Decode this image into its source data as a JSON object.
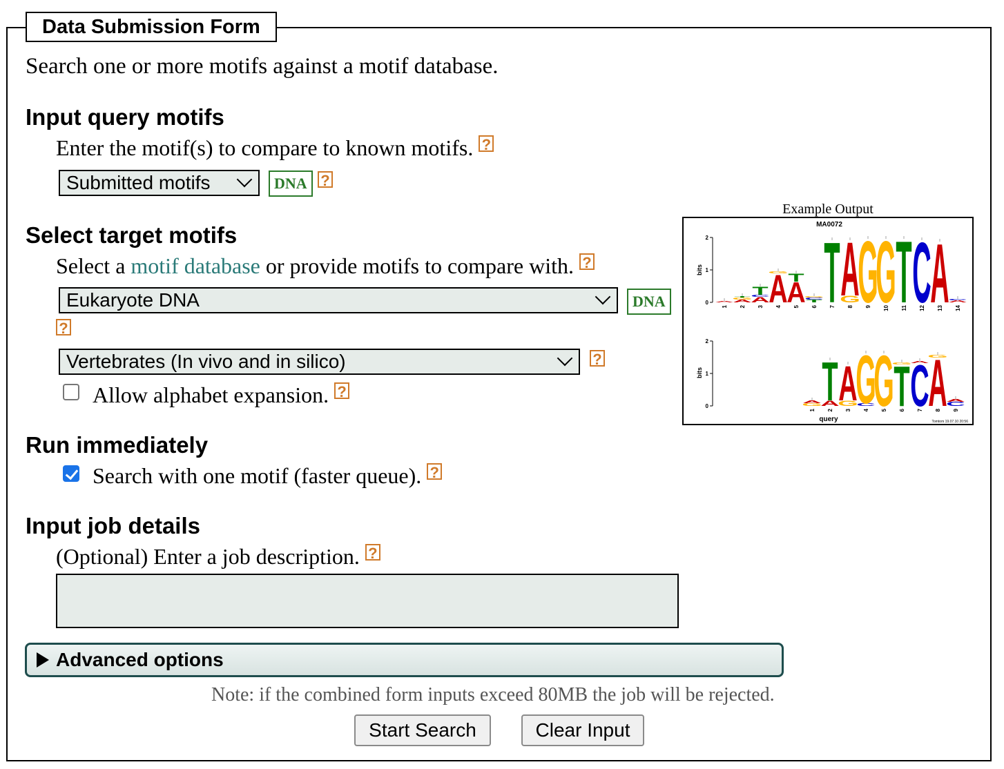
{
  "form": {
    "legend": "Data Submission Form",
    "intro": "Search one or more motifs against a motif database.",
    "help_glyph": "?"
  },
  "query": {
    "heading": "Input query motifs",
    "instruction": "Enter the motif(s) to compare to known motifs.",
    "select_value": "Submitted motifs",
    "alphabet_badge": "DNA"
  },
  "target": {
    "heading": "Select target motifs",
    "instruction_before": "Select a ",
    "instruction_link": "motif database",
    "instruction_after": " or provide motifs to compare with.",
    "database_select_value": "Eukaryote DNA",
    "alphabet_badge": "DNA",
    "subset_select_value": "Vertebrates (In vivo and in silico)",
    "expand_label": "Allow alphabet expansion.",
    "expand_checked": false
  },
  "run": {
    "heading": "Run immediately",
    "label": "Search with one motif (faster queue).",
    "checked": true
  },
  "job": {
    "heading": "Input job details",
    "instruction": "(Optional) Enter a job description.",
    "description_value": ""
  },
  "advanced": {
    "label": "Advanced options"
  },
  "note": "Note: if the combined form inputs exceed 80MB the job will be rejected.",
  "buttons": {
    "start": "Start Search",
    "clear": "Clear Input"
  },
  "example": {
    "caption": "Example Output",
    "target_name": "MA0072",
    "axis_label": "bits",
    "query_label": "query",
    "footer": "Tomtom 19.07.10 20:56",
    "target_positions": [
      "1",
      "2",
      "3",
      "4",
      "5",
      "6",
      "7",
      "8",
      "9",
      "10",
      "11",
      "12",
      "13",
      "14"
    ],
    "query_positions": [
      "1",
      "2",
      "3",
      "4",
      "5",
      "6",
      "7",
      "8",
      "9"
    ],
    "y_ticks": [
      "0",
      "1",
      "2"
    ],
    "colors": {
      "A": "#cc0000",
      "C": "#0000cc",
      "G": "#ffb300",
      "T": "#008000"
    }
  }
}
